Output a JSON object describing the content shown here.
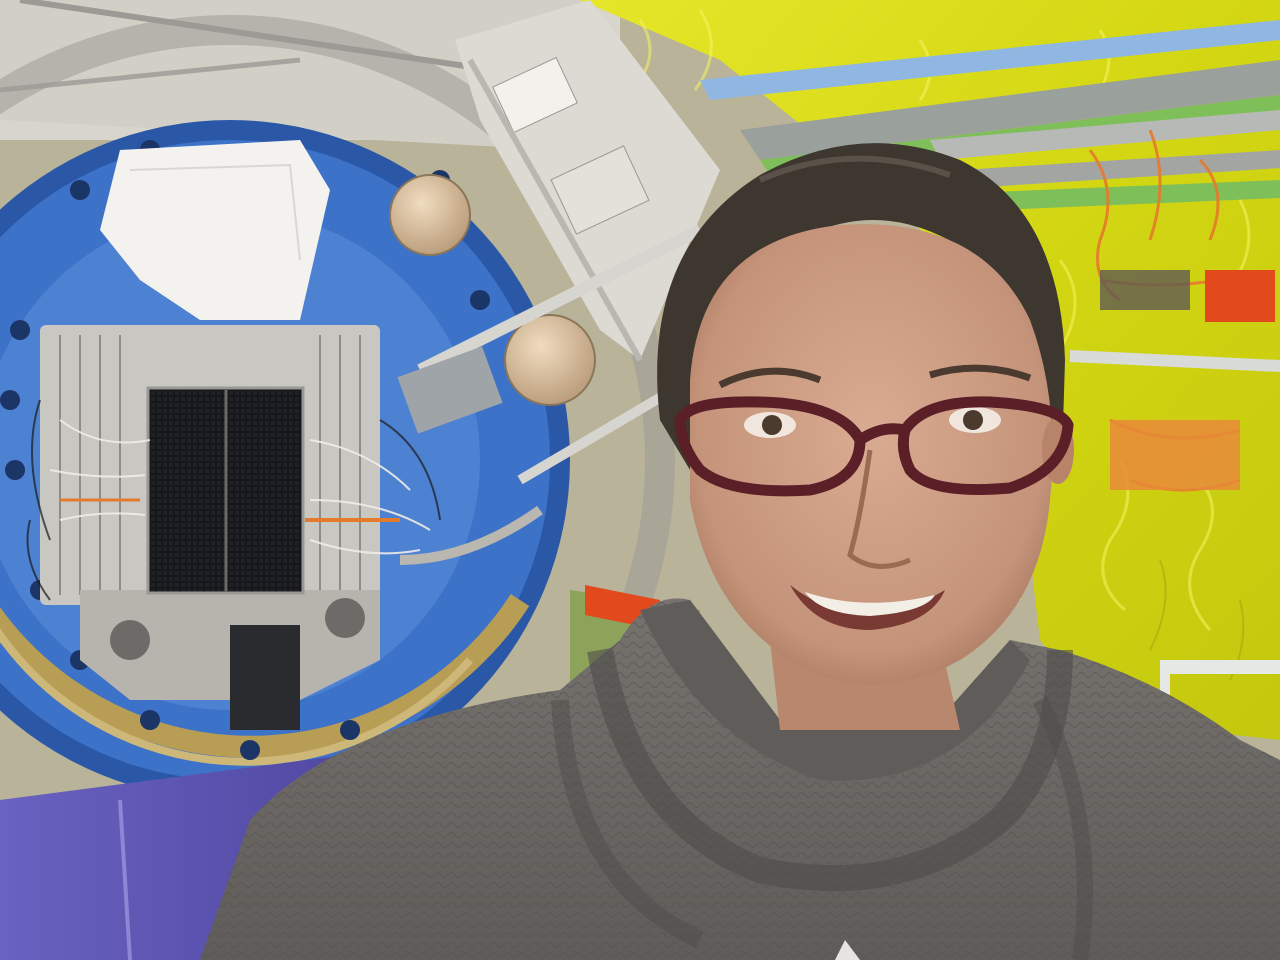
{
  "image": {
    "kind": "photograph",
    "subjects": [
      "person",
      "detector-instrument",
      "cable-bundles",
      "yellow-insulation-wall"
    ]
  },
  "palette": {
    "wall_bg": "#c9c3a4",
    "ring_blue": "#3d72c9",
    "ring_blue_dark": "#2a58a6",
    "ring_blue_light": "#5d92dc",
    "yellow_wall": "#d9dd17",
    "yellow_hi": "#eef03a",
    "metal": "#c9c7c2",
    "metal_dark": "#8e8c88",
    "sensor_black": "#17181c",
    "floor_purple": "#4d45a8",
    "sweater": "#6e6b67",
    "sweater_dark": "#4f4c49",
    "skin": "#c99a80",
    "hair": "#3d3730",
    "glasses_frame": "#5a1f27",
    "orange_cable": "#e67a2c",
    "green_beam": "#7fbf5a"
  }
}
